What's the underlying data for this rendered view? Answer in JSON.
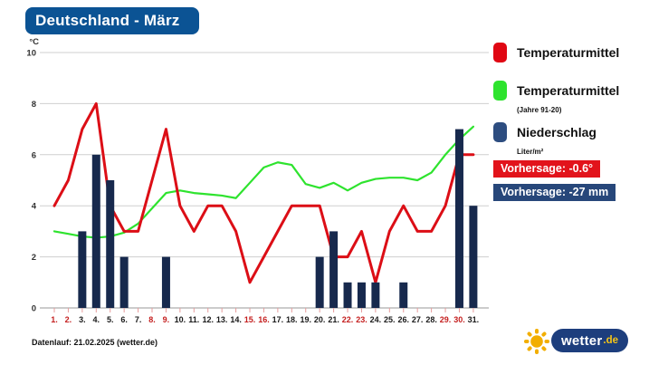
{
  "title": "Deutschland - März",
  "colors": {
    "header_bg": "#0b5394",
    "forecast_line": "#dc0e16",
    "climate_line": "#2ee32e",
    "precip_bar": "#17294d",
    "temp_badge_bg": "#e2131b",
    "precip_badge_bg": "#27477a",
    "weekend_label": "#c41e1e",
    "weekday_label": "#1a1a1a"
  },
  "chart_data": {
    "type": "line+bar",
    "title": "Deutschland - März",
    "ylabel": "°C",
    "ylim": [
      0,
      10
    ],
    "yticks": [
      0,
      2,
      4,
      6,
      8,
      10
    ],
    "x_days": [
      1,
      2,
      3,
      4,
      5,
      6,
      7,
      8,
      9,
      10,
      11,
      12,
      13,
      14,
      15,
      16,
      17,
      18,
      19,
      20,
      21,
      22,
      23,
      24,
      25,
      26,
      27,
      28,
      29,
      30,
      31
    ],
    "x_label_suffix": ".",
    "weekend_days": [
      1,
      2,
      8,
      9,
      15,
      16,
      22,
      23,
      29,
      30
    ],
    "grid": "horizontal-only",
    "legend_position": "right",
    "series": [
      {
        "name": "Temperaturmittel",
        "type": "line",
        "color": "#dc0e16",
        "values": [
          4,
          5,
          7,
          8,
          4,
          3,
          3,
          5,
          7,
          4,
          3,
          4,
          4,
          3,
          1,
          2,
          3,
          4,
          4,
          4,
          2,
          2,
          3,
          1,
          3,
          4,
          3,
          3,
          4,
          6,
          6
        ]
      },
      {
        "name": "Temperaturmittel (Jahre 91-20)",
        "type": "line",
        "color": "#2ee32e",
        "values": [
          3,
          2.9,
          2.8,
          2.75,
          2.8,
          2.95,
          3.3,
          3.9,
          4.5,
          4.6,
          4.5,
          4.45,
          4.4,
          4.3,
          4.9,
          5.5,
          5.7,
          5.6,
          4.85,
          4.7,
          4.9,
          4.6,
          4.9,
          5.05,
          5.1,
          5.1,
          5.0,
          5.3,
          6.0,
          6.6,
          7.1
        ]
      },
      {
        "name": "Niederschlag (Liter/m²)",
        "type": "bar",
        "color": "#17294d",
        "values": [
          0,
          0,
          3,
          6,
          5,
          2,
          0,
          0,
          2,
          0,
          0,
          0,
          0,
          0,
          0,
          0,
          0,
          0,
          0,
          2,
          3,
          1,
          1,
          1,
          0,
          1,
          0,
          0,
          0,
          7,
          4
        ]
      }
    ]
  },
  "legend": {
    "items": [
      {
        "label": "Temperaturmittel",
        "sublabel": "",
        "color": "#e00713"
      },
      {
        "label": "Temperaturmittel",
        "sublabel": "(Jahre 91-20)",
        "color": "#2ee32e"
      },
      {
        "label": "Niederschlag",
        "sublabel": "Liter/m²",
        "color": "#2d4d80"
      }
    ]
  },
  "badges": {
    "temperature": {
      "text": "Vorhersage: -0.6°",
      "color": "#e2131b"
    },
    "precipitation": {
      "text": "Vorhersage: -27 mm",
      "color": "#27477a"
    }
  },
  "footer": {
    "datenlauf": "Datenlauf: 21.02.2025 (wetter.de)"
  },
  "logo": {
    "name": "wetter",
    "tld": ".de"
  }
}
